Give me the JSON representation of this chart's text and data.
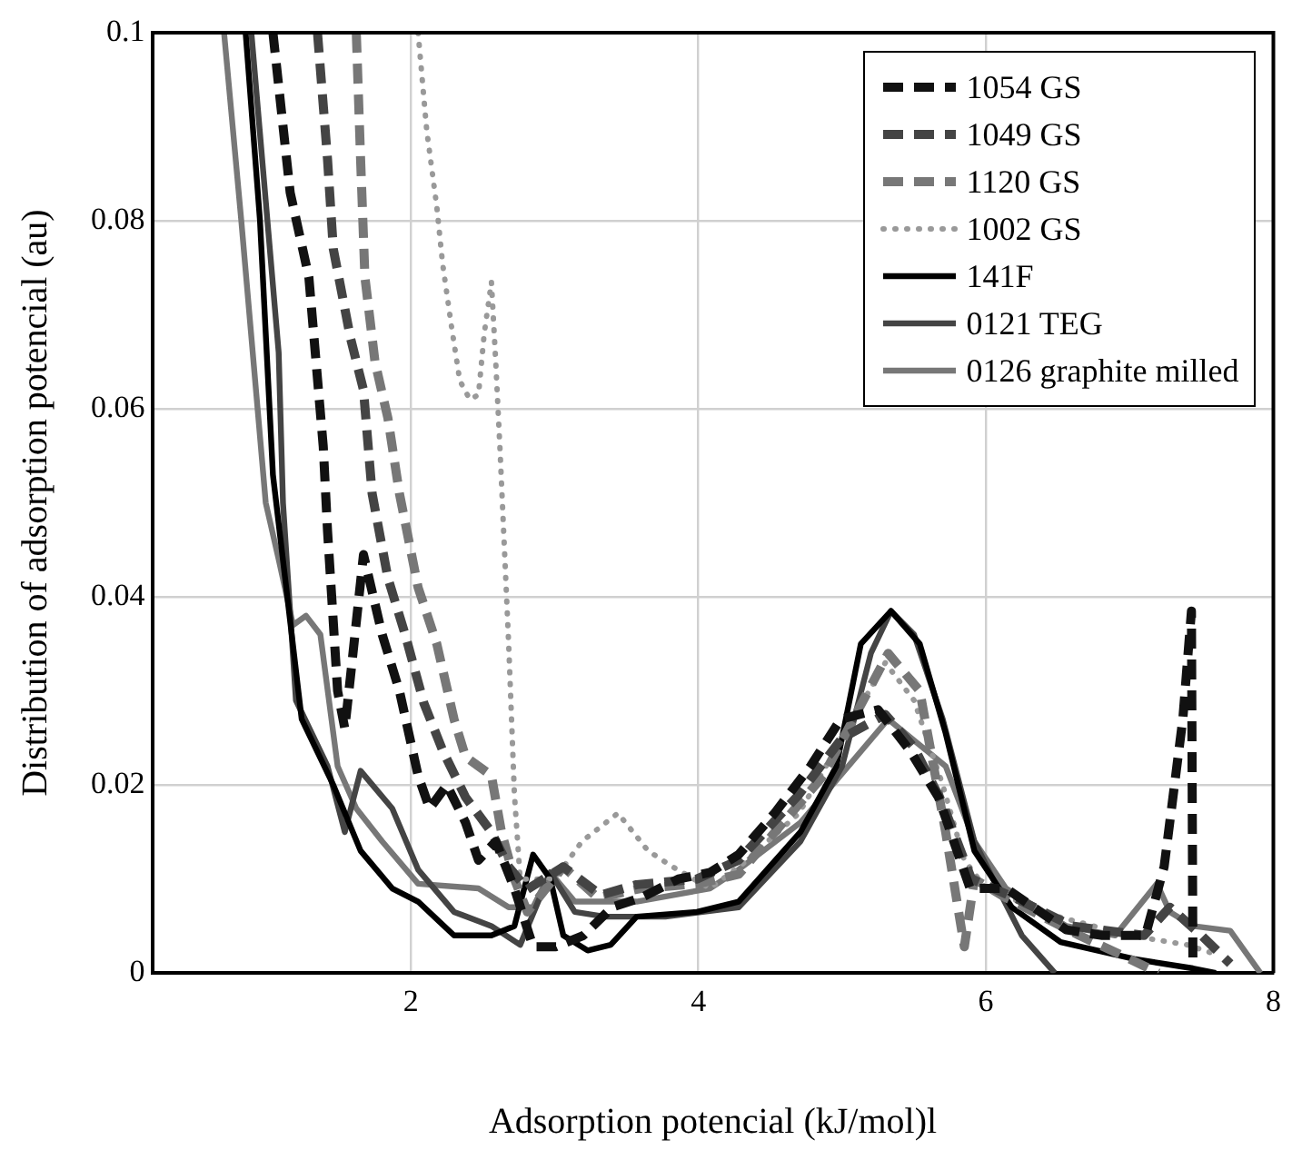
{
  "chart_data": {
    "type": "line",
    "xlabel": "Adsorption potencial (kJ/mol)l",
    "ylabel": "Distribution of adsorption potencial (au)",
    "xlim": [
      0.2,
      8
    ],
    "xticks": [
      2,
      4,
      6,
      8
    ],
    "ylim": [
      0,
      0.1
    ],
    "yticks": [
      0,
      0.02,
      0.04,
      0.06,
      0.08,
      0.1
    ],
    "grid": true,
    "legend": "top right",
    "marker": "none",
    "series": [
      {
        "name": "1054 GS",
        "color": "#111111",
        "line_style": "dashed",
        "x": [
          1.04,
          1.16,
          1.29,
          1.39,
          1.42,
          1.49,
          1.54,
          1.58,
          1.67,
          1.8,
          1.92,
          2.05,
          2.13,
          2.25,
          2.38,
          2.47,
          2.59,
          2.72,
          2.85,
          3.01,
          3.2,
          3.4,
          3.6,
          3.86,
          4.08,
          4.28,
          4.53,
          4.78,
          4.99,
          5.25,
          5.47,
          5.67,
          5.89,
          6.14,
          6.56,
          6.81,
          7.11,
          7.24,
          7.37,
          7.43,
          7.44
        ],
        "values": [
          0.1,
          0.083,
          0.074,
          0.056,
          0.047,
          0.03,
          0.026,
          0.0316,
          0.0445,
          0.036,
          0.03,
          0.021,
          0.0175,
          0.02,
          0.016,
          0.012,
          0.014,
          0.009,
          0.0028,
          0.0028,
          0.004,
          0.007,
          0.008,
          0.01,
          0.0107,
          0.0126,
          0.017,
          0.022,
          0.027,
          0.028,
          0.0237,
          0.0187,
          0.009,
          0.009,
          0.0046,
          0.004,
          0.004,
          0.0113,
          0.027,
          0.0385,
          0.0015
        ]
      },
      {
        "name": "1049 GS",
        "color": "#444444",
        "line_style": "dashed",
        "x": [
          1.35,
          1.42,
          1.46,
          1.58,
          1.67,
          1.73,
          1.84,
          1.96,
          2.09,
          2.22,
          2.38,
          2.56,
          2.68,
          2.81,
          3.06,
          3.32,
          3.57,
          3.99,
          4.28,
          4.7,
          5.0,
          5.3,
          5.5,
          5.7,
          5.9,
          6.2,
          6.6,
          7.1,
          7.28,
          7.5,
          7.7
        ],
        "values": [
          0.1,
          0.0865,
          0.077,
          0.0675,
          0.062,
          0.051,
          0.042,
          0.036,
          0.0287,
          0.0237,
          0.0187,
          0.015,
          0.0113,
          0.0089,
          0.0113,
          0.0083,
          0.0094,
          0.01,
          0.012,
          0.019,
          0.025,
          0.0275,
          0.024,
          0.018,
          0.01,
          0.008,
          0.005,
          0.004,
          0.007,
          0.004,
          0.001
        ]
      },
      {
        "name": "1120 GS",
        "color": "#777777",
        "line_style": "dashed",
        "x": [
          1.62,
          1.65,
          1.68,
          1.75,
          1.84,
          1.92,
          2.05,
          2.18,
          2.3,
          2.38,
          2.56,
          2.63,
          2.72,
          2.81,
          3.06,
          3.3,
          3.6,
          4.0,
          4.28,
          4.87,
          5.32,
          5.54,
          5.72,
          5.85,
          5.92,
          6.14,
          6.65,
          7.0,
          7.2
        ],
        "values": [
          0.1,
          0.0865,
          0.074,
          0.065,
          0.059,
          0.051,
          0.041,
          0.035,
          0.027,
          0.023,
          0.021,
          0.015,
          0.01,
          0.0065,
          0.0113,
          0.008,
          0.009,
          0.0095,
          0.0105,
          0.021,
          0.034,
          0.03,
          0.015,
          0.0028,
          0.01,
          0.008,
          0.004,
          0.0015,
          0
        ]
      },
      {
        "name": "1002 GS",
        "color": "#999999",
        "line_style": "dotted",
        "x": [
          2.05,
          2.11,
          2.18,
          2.22,
          2.28,
          2.34,
          2.41,
          2.47,
          2.51,
          2.56,
          2.59,
          2.62,
          2.68,
          2.72,
          2.76,
          3.0,
          3.19,
          3.44,
          3.65,
          3.82,
          4.08,
          4.3,
          4.7,
          5.0,
          5.3,
          5.5,
          5.7,
          5.85,
          6.0,
          6.5,
          7.0,
          7.4,
          7.6
        ],
        "values": [
          0.1,
          0.0896,
          0.0815,
          0.0755,
          0.069,
          0.063,
          0.061,
          0.0615,
          0.068,
          0.0735,
          0.065,
          0.0556,
          0.035,
          0.019,
          0.01,
          0.01,
          0.014,
          0.017,
          0.013,
          0.0113,
          0.009,
          0.0115,
          0.017,
          0.025,
          0.033,
          0.029,
          0.02,
          0.012,
          0.009,
          0.006,
          0.004,
          0.003,
          0.002
        ]
      },
      {
        "name": "141F",
        "color": "#000000",
        "line_style": "solid",
        "x": [
          0.85,
          0.95,
          1.04,
          1.24,
          1.46,
          1.65,
          1.87,
          2.05,
          2.3,
          2.56,
          2.72,
          2.85,
          2.97,
          3.06,
          3.23,
          3.39,
          3.57,
          3.99,
          4.28,
          4.71,
          4.96,
          5.13,
          5.34,
          5.54,
          5.72,
          5.92,
          6.18,
          6.52,
          7.03,
          7.44,
          7.6
        ],
        "values": [
          0.1,
          0.08,
          0.053,
          0.027,
          0.02,
          0.013,
          0.009,
          0.0076,
          0.004,
          0.004,
          0.005,
          0.0126,
          0.01,
          0.004,
          0.0024,
          0.003,
          0.006,
          0.0065,
          0.0076,
          0.015,
          0.022,
          0.035,
          0.0385,
          0.035,
          0.0255,
          0.013,
          0.007,
          0.0033,
          0.0015,
          0.0005,
          0
        ]
      },
      {
        "name": "0121 TEG",
        "color": "#444444",
        "line_style": "solid",
        "x": [
          0.89,
          1.08,
          1.11,
          1.2,
          1.42,
          1.54,
          1.65,
          1.87,
          2.05,
          2.3,
          2.56,
          2.76,
          2.97,
          3.14,
          3.35,
          3.77,
          4.28,
          4.71,
          5.0,
          5.2,
          5.34,
          5.5,
          5.7,
          5.92,
          6.05,
          6.25,
          6.48
        ],
        "values": [
          0.1,
          0.066,
          0.05,
          0.029,
          0.022,
          0.015,
          0.0215,
          0.0175,
          0.011,
          0.0065,
          0.005,
          0.003,
          0.0107,
          0.0065,
          0.006,
          0.006,
          0.007,
          0.014,
          0.022,
          0.034,
          0.0385,
          0.036,
          0.027,
          0.014,
          0.01,
          0.004,
          0
        ]
      },
      {
        "name": "0126 graphite milled",
        "color": "#777777",
        "line_style": "solid",
        "x": [
          0.7,
          0.82,
          0.99,
          1.08,
          1.18,
          1.27,
          1.37,
          1.49,
          1.62,
          1.8,
          2.05,
          2.47,
          2.68,
          2.85,
          2.97,
          3.14,
          3.57,
          4.08,
          4.28,
          4.71,
          5.32,
          5.72,
          5.92,
          6.14,
          6.56,
          6.9,
          7.19,
          7.28,
          7.44,
          7.7,
          7.91
        ],
        "values": [
          0.1,
          0.08,
          0.05,
          0.044,
          0.037,
          0.038,
          0.036,
          0.022,
          0.0175,
          0.014,
          0.0095,
          0.009,
          0.007,
          0.007,
          0.0107,
          0.0076,
          0.0076,
          0.009,
          0.011,
          0.016,
          0.027,
          0.022,
          0.014,
          0.009,
          0.005,
          0.004,
          0.0095,
          0.0065,
          0.005,
          0.0045,
          0
        ]
      }
    ]
  }
}
